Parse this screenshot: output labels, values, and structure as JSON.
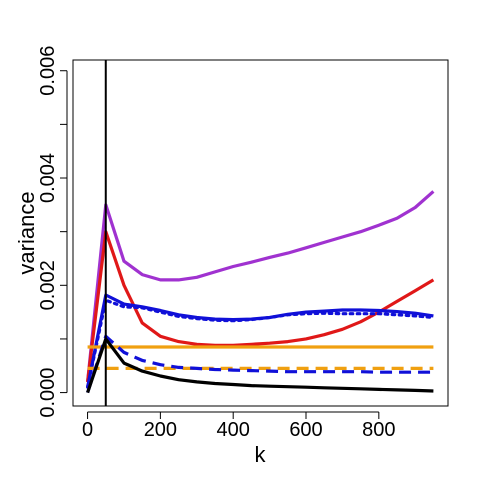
{
  "chart_data": {
    "type": "line",
    "xlabel": "k",
    "ylabel": "variance",
    "xlim": [
      -40,
      990
    ],
    "ylim": [
      -0.00025,
      0.0062
    ],
    "x_ticks": [
      {
        "value": 0,
        "label": "0"
      },
      {
        "value": 200,
        "label": "200"
      },
      {
        "value": 400,
        "label": "400"
      },
      {
        "value": 600,
        "label": "600"
      },
      {
        "value": 800,
        "label": "800"
      }
    ],
    "y_ticks": [
      {
        "value": 0,
        "label": "0.000"
      },
      {
        "value": 0.001,
        "label": ""
      },
      {
        "value": 0.002,
        "label": "0.002"
      },
      {
        "value": 0.003,
        "label": ""
      },
      {
        "value": 0.004,
        "label": "0.004"
      },
      {
        "value": 0.005,
        "label": ""
      },
      {
        "value": 0.006,
        "label": "0.006"
      }
    ],
    "legend": "none",
    "grid": false,
    "vline": {
      "x": 50,
      "color": "#000000"
    },
    "series": [
      {
        "color": "#A032D0",
        "dash": "solid",
        "x": [
          0,
          50,
          100,
          150,
          200,
          250,
          300,
          350,
          400,
          450,
          500,
          550,
          600,
          650,
          700,
          750,
          800,
          850,
          900,
          950
        ],
        "y": [
          0.0002,
          0.0035,
          0.00245,
          0.0022,
          0.0021,
          0.0021,
          0.00215,
          0.00225,
          0.00235,
          0.00243,
          0.00252,
          0.0026,
          0.0027,
          0.0028,
          0.0029,
          0.003,
          0.00312,
          0.00325,
          0.00345,
          0.00375
        ]
      },
      {
        "color": "#E01818",
        "dash": "solid",
        "x": [
          0,
          50,
          100,
          150,
          200,
          250,
          300,
          350,
          400,
          450,
          500,
          550,
          600,
          650,
          700,
          750,
          800,
          850,
          900,
          950
        ],
        "y": [
          0.0002,
          0.003,
          0.002,
          0.0013,
          0.00105,
          0.00095,
          0.0009,
          0.00088,
          0.00088,
          0.0009,
          0.00092,
          0.00095,
          0.001,
          0.00108,
          0.00118,
          0.00132,
          0.0015,
          0.0017,
          0.0019,
          0.0021
        ]
      },
      {
        "color": "#1010D8",
        "dash": "solid",
        "x": [
          0,
          50,
          100,
          150,
          200,
          250,
          300,
          350,
          400,
          450,
          500,
          550,
          600,
          650,
          700,
          750,
          800,
          850,
          900,
          950
        ],
        "y": [
          0.0001,
          0.00182,
          0.00165,
          0.0016,
          0.00153,
          0.00145,
          0.0014,
          0.00137,
          0.00136,
          0.00137,
          0.0014,
          0.00146,
          0.0015,
          0.00152,
          0.00154,
          0.00154,
          0.00153,
          0.00151,
          0.00148,
          0.00143
        ]
      },
      {
        "color": "#1010D8",
        "dash": "dotted",
        "x": [
          0,
          50,
          100,
          150,
          200,
          250,
          300,
          350,
          400,
          450,
          500,
          550,
          600,
          650,
          700,
          750,
          800,
          850,
          900,
          950
        ],
        "y": [
          0.0001,
          0.00172,
          0.0016,
          0.00158,
          0.0015,
          0.00142,
          0.00138,
          0.00135,
          0.00134,
          0.00136,
          0.0014,
          0.00145,
          0.00147,
          0.00148,
          0.00147,
          0.00147,
          0.00147,
          0.00145,
          0.00143,
          0.0014
        ]
      },
      {
        "color": "#F0A010",
        "dash": "solid",
        "x": [
          0,
          950
        ],
        "y": [
          0.00085,
          0.00085
        ]
      },
      {
        "color": "#F0A010",
        "dash": "dashed",
        "x": [
          0,
          950
        ],
        "y": [
          0.00045,
          0.00045
        ]
      },
      {
        "color": "#1010D8",
        "dash": "dashed",
        "x": [
          0,
          50,
          100,
          150,
          200,
          250,
          300,
          350,
          400,
          450,
          500,
          550,
          600,
          650,
          700,
          750,
          800,
          850,
          900,
          950
        ],
        "y": [
          0.0,
          0.00105,
          0.00075,
          0.0006,
          0.00052,
          0.00047,
          0.00045,
          0.00043,
          0.00042,
          0.00041,
          0.0004,
          0.00039,
          0.00039,
          0.00039,
          0.00039,
          0.00039,
          0.00038,
          0.00038,
          0.00038,
          0.00038
        ]
      },
      {
        "color": "#000000",
        "dash": "solid",
        "x": [
          0,
          50,
          100,
          150,
          200,
          250,
          300,
          350,
          400,
          450,
          500,
          550,
          600,
          650,
          700,
          750,
          800,
          850,
          900,
          950
        ],
        "y": [
          0.0,
          0.001,
          0.00055,
          0.0004,
          0.00031,
          0.00024,
          0.0002,
          0.00017,
          0.00015,
          0.00013,
          0.00012,
          0.00011,
          0.0001,
          9e-05,
          8e-05,
          7e-05,
          6e-05,
          5e-05,
          4e-05,
          3e-05
        ]
      }
    ]
  }
}
